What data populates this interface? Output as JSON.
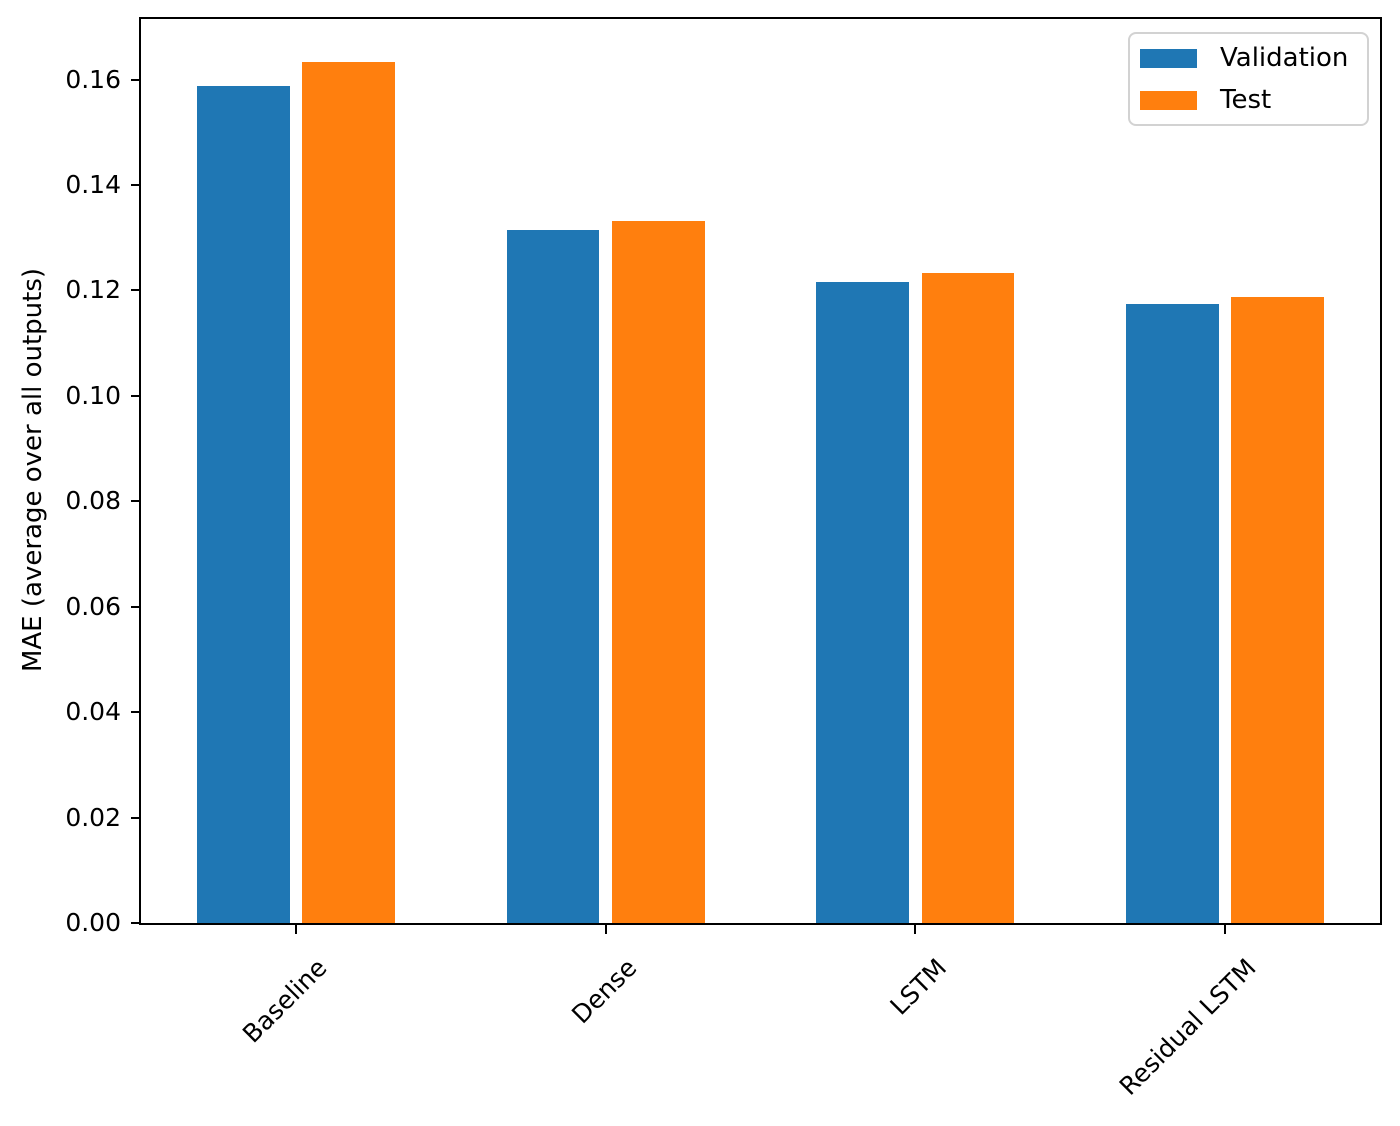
{
  "chart_data": {
    "type": "bar",
    "title": "",
    "xlabel": "",
    "ylabel": "MAE (average over all outputs)",
    "categories": [
      "Baseline",
      "Dense",
      "LSTM",
      "Residual LSTM"
    ],
    "series": [
      {
        "name": "Validation",
        "color": "#1f77b4",
        "values": [
          0.1587,
          0.1315,
          0.1216,
          0.1175
        ]
      },
      {
        "name": "Test",
        "color": "#ff7f0e",
        "values": [
          0.1633,
          0.1331,
          0.1233,
          0.1188
        ]
      }
    ],
    "ylim": [
      0,
      0.1715
    ],
    "y_ticks": [
      0.0,
      0.02,
      0.04,
      0.06,
      0.08,
      0.1,
      0.12,
      0.14,
      0.16
    ],
    "y_tick_labels": [
      "0.00",
      "0.02",
      "0.04",
      "0.06",
      "0.08",
      "0.10",
      "0.12",
      "0.14",
      "0.16"
    ],
    "x_tick_rotation": 45,
    "bar_width_fraction": 0.3,
    "pair_offset_fraction": 0.17,
    "grid": false,
    "legend": {
      "location": "upper right",
      "entries": [
        "Validation",
        "Test"
      ]
    }
  },
  "style": {
    "background": "#ffffff",
    "axis_color": "#000000",
    "text_color": "#000000",
    "legend_border_color": "#d2d2d2"
  }
}
